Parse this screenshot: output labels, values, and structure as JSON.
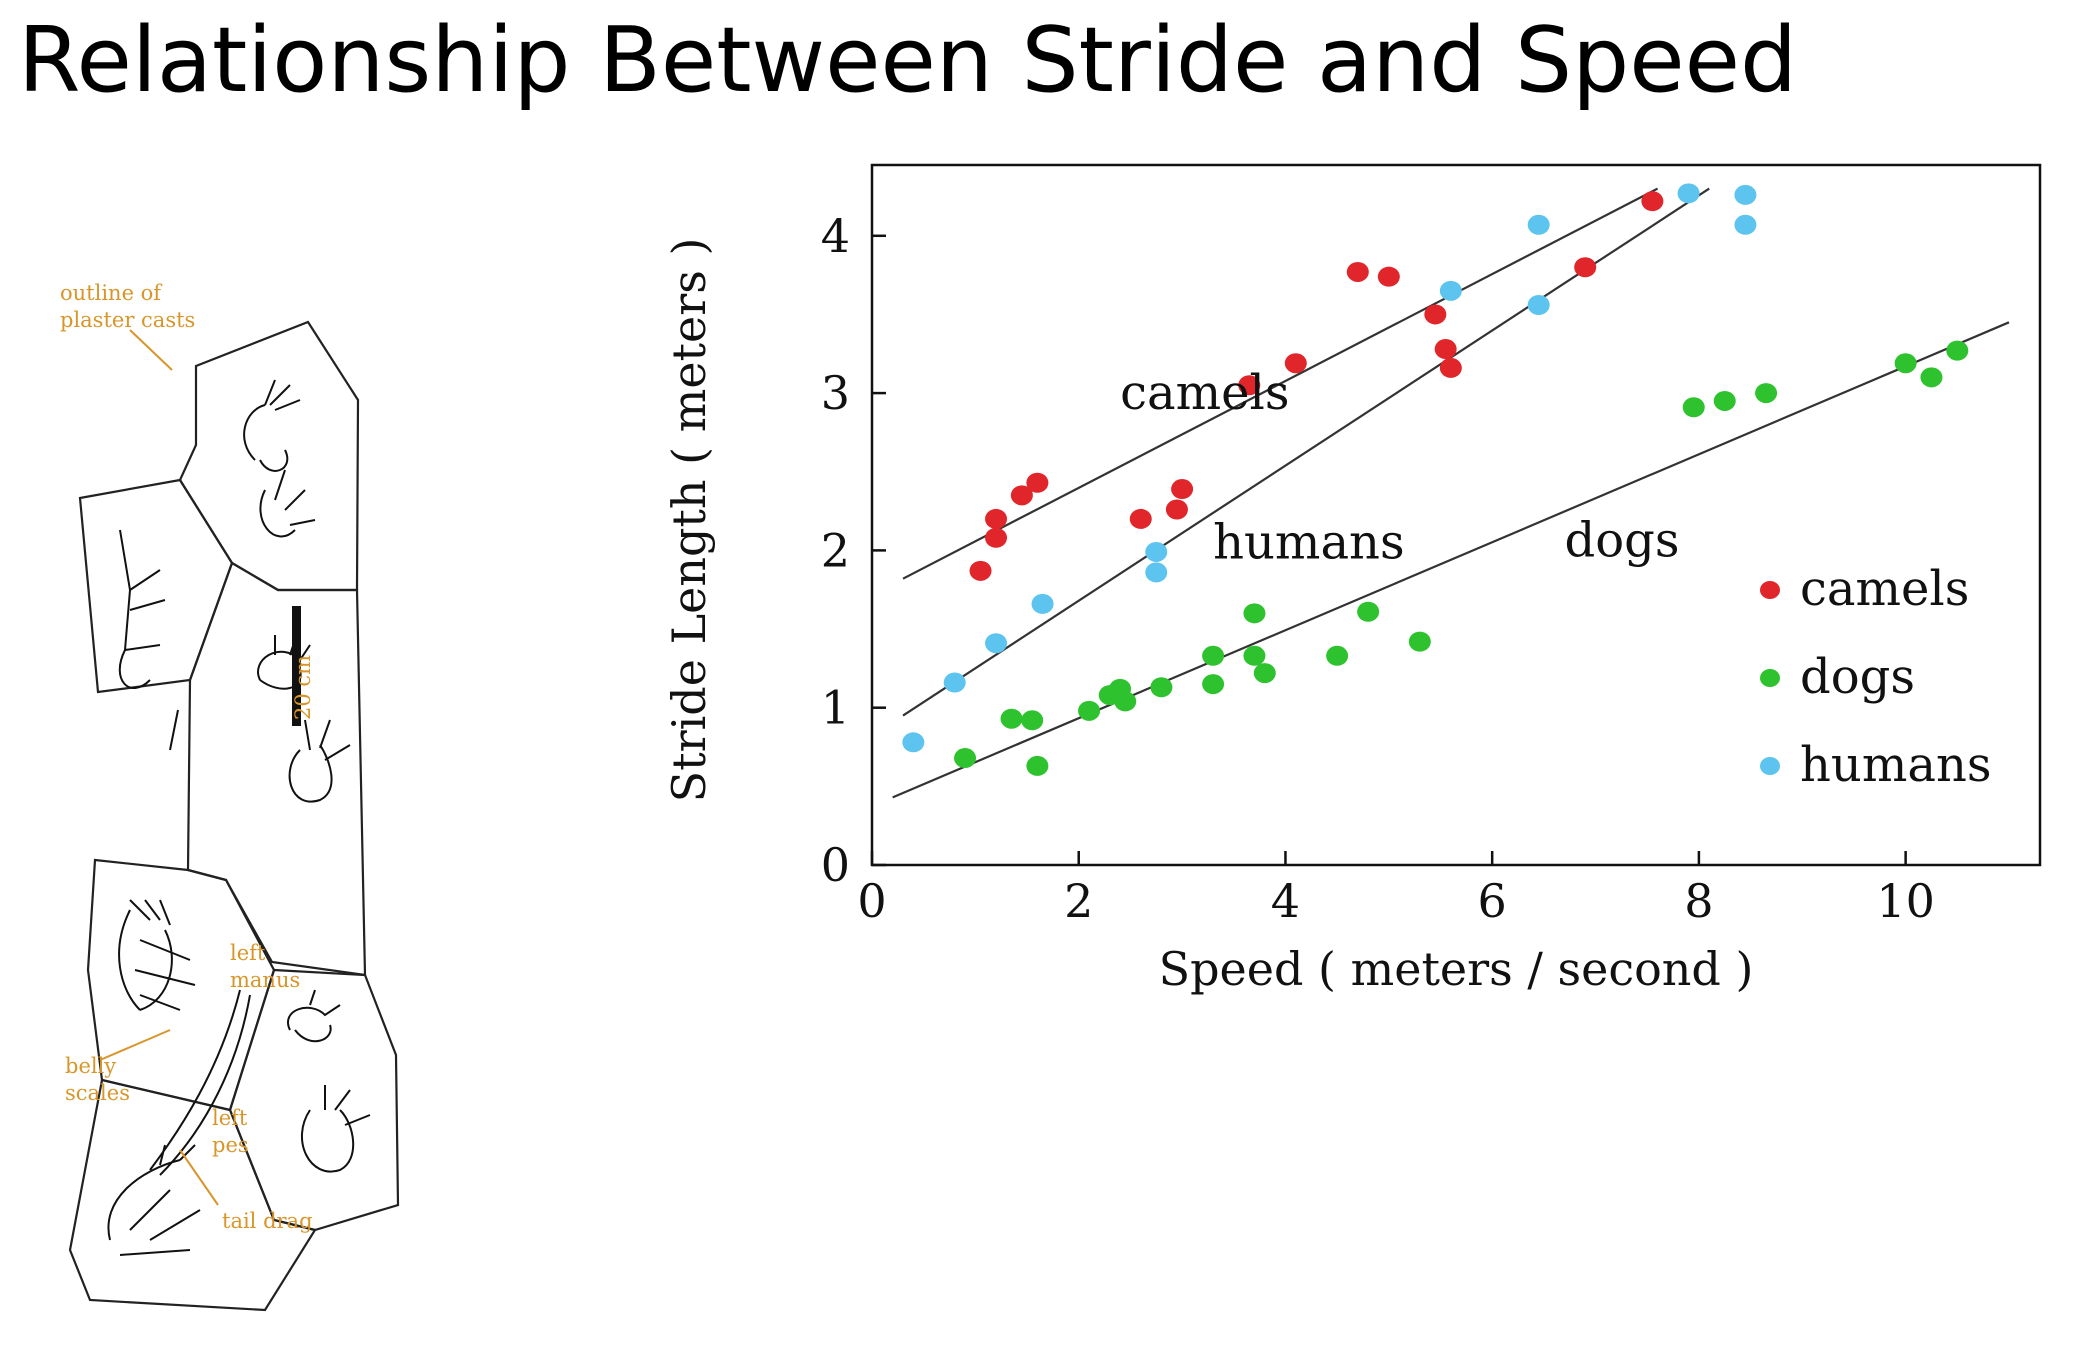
{
  "title": "Relationship Between Stride and Speed",
  "drawing": {
    "labels": {
      "outline": [
        "outline of",
        "plaster casts"
      ],
      "scale": "20 cm",
      "manus": [
        "left",
        "manus"
      ],
      "belly": [
        "belly",
        "scales"
      ],
      "pes": [
        "left",
        "pes"
      ],
      "tail": "tail drag"
    },
    "accent_color": "#d8962a"
  },
  "chart_data": {
    "type": "scatter",
    "title": "",
    "xlabel": "Speed ( meters / second )",
    "ylabel": "Stride Length ( meters )",
    "xlim": [
      0,
      11.3
    ],
    "ylim": [
      0,
      4.45
    ],
    "xticks": [
      0,
      2,
      4,
      6,
      8,
      10
    ],
    "yticks": [
      0,
      1,
      2,
      3,
      4
    ],
    "grid": false,
    "legend": "right",
    "series": [
      {
        "name": "camels",
        "color": "#e0262a",
        "points": [
          [
            1.05,
            1.87
          ],
          [
            1.2,
            2.08
          ],
          [
            1.2,
            2.2
          ],
          [
            1.45,
            2.35
          ],
          [
            1.6,
            2.43
          ],
          [
            2.6,
            2.2
          ],
          [
            2.95,
            2.26
          ],
          [
            3.0,
            2.39
          ],
          [
            3.65,
            3.05
          ],
          [
            4.1,
            3.19
          ],
          [
            4.7,
            3.77
          ],
          [
            5.0,
            3.74
          ],
          [
            5.45,
            3.5
          ],
          [
            5.55,
            3.28
          ],
          [
            5.6,
            3.16
          ],
          [
            6.9,
            3.8
          ],
          [
            7.55,
            4.22
          ]
        ]
      },
      {
        "name": "dogs",
        "color": "#2fc22f",
        "points": [
          [
            0.9,
            0.68
          ],
          [
            1.35,
            0.93
          ],
          [
            1.55,
            0.92
          ],
          [
            1.6,
            0.63
          ],
          [
            2.1,
            0.98
          ],
          [
            2.3,
            1.08
          ],
          [
            2.4,
            1.12
          ],
          [
            2.45,
            1.04
          ],
          [
            2.8,
            1.13
          ],
          [
            3.3,
            1.15
          ],
          [
            3.3,
            1.33
          ],
          [
            3.7,
            1.33
          ],
          [
            3.7,
            1.6
          ],
          [
            3.8,
            1.22
          ],
          [
            4.5,
            1.33
          ],
          [
            4.8,
            1.61
          ],
          [
            5.3,
            1.42
          ],
          [
            7.95,
            2.91
          ],
          [
            8.25,
            2.95
          ],
          [
            8.65,
            3.0
          ],
          [
            10.0,
            3.19
          ],
          [
            10.25,
            3.1
          ],
          [
            10.5,
            3.27
          ]
        ]
      },
      {
        "name": "humans",
        "color": "#5cc4ee",
        "points": [
          [
            0.4,
            0.78
          ],
          [
            0.8,
            1.16
          ],
          [
            1.2,
            1.41
          ],
          [
            1.65,
            1.66
          ],
          [
            2.75,
            1.99
          ],
          [
            2.75,
            1.86
          ],
          [
            5.6,
            3.65
          ],
          [
            6.45,
            3.56
          ],
          [
            6.45,
            4.07
          ],
          [
            7.9,
            4.27
          ],
          [
            8.45,
            4.26
          ],
          [
            8.45,
            4.07
          ]
        ]
      }
    ],
    "trend_lines": [
      {
        "label": "camels",
        "from": [
          0.3,
          1.82
        ],
        "to": [
          7.6,
          4.3
        ]
      },
      {
        "label": "humans",
        "from": [
          0.3,
          0.95
        ],
        "to": [
          8.1,
          4.3
        ]
      },
      {
        "label": "dogs",
        "from": [
          0.2,
          0.43
        ],
        "to": [
          11.0,
          3.45
        ]
      }
    ],
    "line_labels": [
      {
        "text": "camels",
        "x": 2.4,
        "y": 2.9
      },
      {
        "text": "humans",
        "x": 3.3,
        "y": 1.95
      },
      {
        "text": "dogs",
        "x": 6.7,
        "y": 1.96
      }
    ]
  }
}
